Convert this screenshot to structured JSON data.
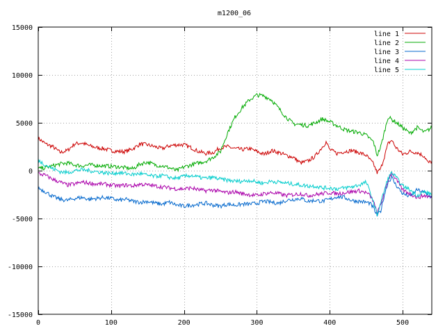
{
  "chart_data": {
    "type": "line",
    "title": "m1200_06",
    "xlabel": "",
    "ylabel": "",
    "xlim": [
      0,
      540
    ],
    "ylim": [
      -15000,
      15000
    ],
    "xticks": [
      0,
      100,
      200,
      300,
      400,
      500
    ],
    "yticks": [
      -15000,
      -10000,
      -5000,
      0,
      5000,
      10000,
      15000
    ],
    "grid": true,
    "legend_position": "top-right",
    "series": [
      {
        "name": "line 1",
        "color": "#cc0000",
        "x": [
          0,
          10,
          20,
          30,
          40,
          50,
          60,
          70,
          80,
          90,
          100,
          110,
          120,
          130,
          140,
          150,
          160,
          170,
          180,
          190,
          200,
          210,
          220,
          230,
          240,
          250,
          260,
          270,
          280,
          290,
          300,
          310,
          320,
          330,
          340,
          350,
          360,
          370,
          380,
          390,
          395,
          400,
          410,
          420,
          430,
          440,
          450,
          460,
          465,
          470,
          480,
          485,
          490,
          500,
          510,
          520,
          530,
          535,
          540
        ],
        "y": [
          3400,
          2800,
          2500,
          1900,
          2100,
          2800,
          2900,
          2600,
          2400,
          2300,
          2100,
          2000,
          2000,
          2300,
          2800,
          2700,
          2500,
          2300,
          2600,
          2700,
          2700,
          2400,
          2000,
          1800,
          1900,
          2400,
          2500,
          2300,
          2200,
          2300,
          2000,
          1700,
          2100,
          1900,
          1600,
          1400,
          800,
          1000,
          1500,
          2500,
          3000,
          2200,
          1800,
          2000,
          2100,
          1900,
          1600,
          700,
          -200,
          200,
          2800,
          3200,
          2500,
          1700,
          2000,
          1900,
          1500,
          800,
          1000
        ]
      },
      {
        "name": "line 2",
        "color": "#00aa00",
        "x": [
          0,
          10,
          20,
          30,
          40,
          50,
          60,
          70,
          80,
          90,
          100,
          110,
          120,
          130,
          140,
          150,
          160,
          170,
          180,
          190,
          200,
          210,
          220,
          230,
          240,
          250,
          260,
          270,
          280,
          290,
          300,
          310,
          320,
          330,
          340,
          350,
          360,
          370,
          380,
          390,
          400,
          410,
          420,
          430,
          440,
          450,
          460,
          465,
          470,
          480,
          490,
          500,
          510,
          520,
          530,
          540
        ],
        "y": [
          200,
          300,
          500,
          700,
          800,
          600,
          500,
          600,
          550,
          500,
          450,
          400,
          300,
          200,
          700,
          900,
          600,
          500,
          300,
          0,
          400,
          600,
          800,
          1000,
          1400,
          2000,
          4000,
          5600,
          6600,
          7400,
          7900,
          7800,
          7400,
          6500,
          5600,
          4900,
          4800,
          4700,
          5000,
          5400,
          5100,
          4700,
          4300,
          4100,
          4000,
          3700,
          3000,
          1600,
          2500,
          5600,
          5100,
          4500,
          3900,
          4500,
          4000,
          4500
        ]
      },
      {
        "name": "line 3",
        "color": "#0066cc",
        "x": [
          0,
          10,
          20,
          30,
          40,
          50,
          60,
          70,
          80,
          90,
          100,
          110,
          120,
          130,
          140,
          150,
          160,
          170,
          180,
          190,
          200,
          210,
          220,
          230,
          240,
          250,
          260,
          270,
          280,
          290,
          300,
          310,
          320,
          330,
          340,
          350,
          360,
          370,
          380,
          390,
          400,
          410,
          420,
          430,
          440,
          450,
          455,
          460,
          465,
          470,
          475,
          480,
          485,
          490,
          500,
          510,
          520,
          530,
          540
        ],
        "y": [
          -1800,
          -2200,
          -2700,
          -3000,
          -3100,
          -2900,
          -2800,
          -3000,
          -2900,
          -2800,
          -2900,
          -3100,
          -3000,
          -3200,
          -3300,
          -3200,
          -3400,
          -3500,
          -3300,
          -3600,
          -3700,
          -3600,
          -3500,
          -3400,
          -3600,
          -3700,
          -3500,
          -3600,
          -3500,
          -3500,
          -3400,
          -3200,
          -3300,
          -3400,
          -3100,
          -3000,
          -2900,
          -3200,
          -3100,
          -3200,
          -3000,
          -2700,
          -2800,
          -3100,
          -3200,
          -3300,
          -3400,
          -3900,
          -4700,
          -4200,
          -2500,
          -1200,
          -700,
          -1400,
          -2400,
          -2700,
          -2000,
          -2300,
          -2800
        ]
      },
      {
        "name": "line 4",
        "color": "#aa00aa",
        "x": [
          0,
          10,
          20,
          30,
          40,
          50,
          60,
          70,
          80,
          90,
          100,
          110,
          120,
          130,
          140,
          150,
          160,
          170,
          180,
          190,
          200,
          210,
          220,
          230,
          240,
          250,
          260,
          270,
          280,
          290,
          300,
          310,
          320,
          330,
          340,
          350,
          360,
          370,
          380,
          390,
          400,
          410,
          420,
          430,
          440,
          450,
          455,
          460,
          465,
          470,
          480,
          485,
          490,
          500,
          510,
          520,
          530,
          540
        ],
        "y": [
          -300,
          -500,
          -900,
          -1200,
          -1500,
          -1400,
          -1200,
          -1300,
          -1400,
          -1400,
          -1500,
          -1600,
          -1500,
          -1600,
          -1400,
          -1500,
          -1600,
          -1700,
          -1800,
          -1900,
          -1900,
          -1800,
          -2000,
          -2100,
          -2000,
          -2200,
          -2300,
          -2200,
          -2400,
          -2500,
          -2600,
          -2400,
          -2300,
          -2400,
          -2600,
          -2500,
          -2400,
          -2600,
          -2500,
          -2400,
          -2300,
          -2400,
          -2300,
          -2200,
          -2100,
          -2300,
          -2600,
          -3200,
          -4500,
          -3500,
          -1000,
          -200,
          -800,
          -2000,
          -2400,
          -2800,
          -2600,
          -2800
        ]
      },
      {
        "name": "line 5",
        "color": "#00cccc",
        "x": [
          0,
          10,
          20,
          30,
          40,
          50,
          60,
          70,
          80,
          90,
          100,
          110,
          120,
          130,
          140,
          150,
          160,
          170,
          180,
          190,
          200,
          210,
          220,
          230,
          240,
          250,
          260,
          270,
          280,
          290,
          300,
          310,
          320,
          330,
          340,
          350,
          360,
          370,
          380,
          390,
          400,
          410,
          420,
          430,
          440,
          450,
          455,
          460,
          465,
          470,
          480,
          485,
          490,
          500,
          510,
          520,
          530,
          540
        ],
        "y": [
          1100,
          600,
          200,
          -100,
          -200,
          0,
          100,
          0,
          -100,
          -200,
          -300,
          -200,
          -300,
          -400,
          -300,
          -500,
          -600,
          -500,
          -700,
          -800,
          -600,
          -500,
          -700,
          -800,
          -700,
          -900,
          -1000,
          -1100,
          -1100,
          -1000,
          -1200,
          -1300,
          -1100,
          -1200,
          -1300,
          -1400,
          -1500,
          -1600,
          -1600,
          -1800,
          -1800,
          -1900,
          -1800,
          -1700,
          -1500,
          -1200,
          -2200,
          -3300,
          -4600,
          -3300,
          -800,
          -200,
          -600,
          -1600,
          -2000,
          -2600,
          -2200,
          -2500
        ]
      }
    ]
  }
}
